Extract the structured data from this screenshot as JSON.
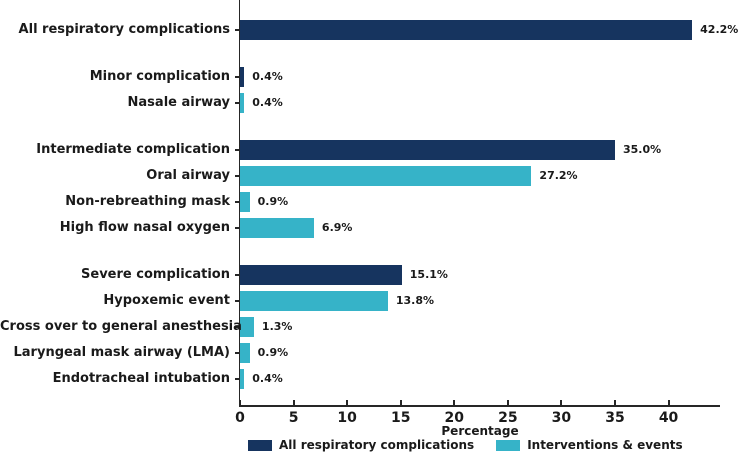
{
  "chart_data": {
    "type": "bar",
    "orientation": "horizontal",
    "title": "",
    "xlabel": "Percentage",
    "ylabel": "",
    "xlim": [
      0,
      44.8
    ],
    "xticks": [
      0,
      5,
      10,
      15,
      20,
      25,
      30,
      35,
      40
    ],
    "grid": false,
    "legend_position": "bottom",
    "series": [
      {
        "name": "All respiratory complications",
        "color": "#16345f"
      },
      {
        "name": "Interventions & events",
        "color": "#36b3c8"
      }
    ],
    "bars": [
      {
        "label": "All respiratory complications",
        "value": 42.2,
        "display": "42.2%",
        "series": 0,
        "group": 0
      },
      {
        "label": "Minor complication",
        "value": 0.4,
        "display": "0.4%",
        "series": 0,
        "group": 1
      },
      {
        "label": "Nasale airway",
        "value": 0.4,
        "display": "0.4%",
        "series": 1,
        "group": 1
      },
      {
        "label": "Intermediate complication",
        "value": 35.0,
        "display": "35.0%",
        "series": 0,
        "group": 2
      },
      {
        "label": "Oral airway",
        "value": 27.2,
        "display": "27.2%",
        "series": 1,
        "group": 2
      },
      {
        "label": "Non-rebreathing mask",
        "value": 0.9,
        "display": "0.9%",
        "series": 1,
        "group": 2
      },
      {
        "label": "High flow nasal oxygen",
        "value": 6.9,
        "display": "6.9%",
        "series": 1,
        "group": 2
      },
      {
        "label": "Severe complication",
        "value": 15.1,
        "display": "15.1%",
        "series": 0,
        "group": 3
      },
      {
        "label": "Hypoxemic event",
        "value": 13.8,
        "display": "13.8%",
        "series": 1,
        "group": 3
      },
      {
        "label": "Cross over to general anesthesia",
        "value": 1.3,
        "display": "1.3%",
        "series": 1,
        "group": 3
      },
      {
        "label": "Laryngeal mask airway (LMA)",
        "value": 0.9,
        "display": "0.9%",
        "series": 1,
        "group": 3
      },
      {
        "label": "Endotracheal intubation",
        "value": 0.4,
        "display": "0.4%",
        "series": 1,
        "group": 3
      }
    ],
    "colors": {
      "axis": "#262626",
      "text": "#1a1a1a",
      "background": "#ffffff"
    }
  }
}
